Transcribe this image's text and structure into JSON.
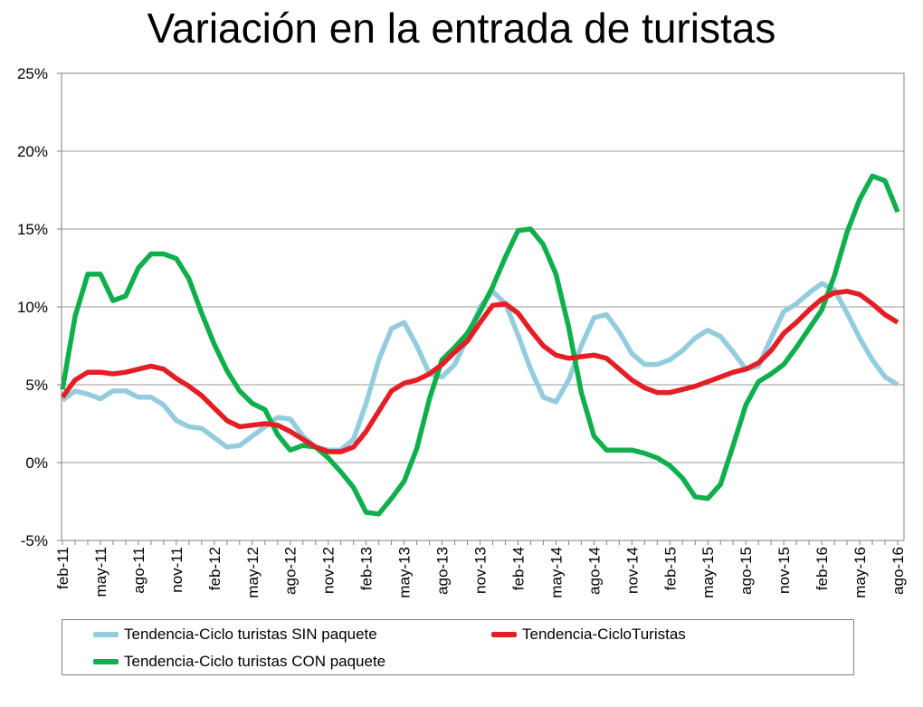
{
  "chart_data": {
    "type": "line",
    "title": "Variación en la entrada de turistas",
    "xlabel": "",
    "ylabel": "",
    "ylim": [
      -5,
      25
    ],
    "y_ticks": [
      -5,
      0,
      5,
      10,
      15,
      20,
      25
    ],
    "y_tick_labels": [
      "-5%",
      "0%",
      "5%",
      "10%",
      "15%",
      "20%",
      "25%"
    ],
    "grid": true,
    "legend_position": "bottom",
    "categories": [
      "feb-11",
      "mar-11",
      "abr-11",
      "may-11",
      "jun-11",
      "jul-11",
      "ago-11",
      "sep-11",
      "oct-11",
      "nov-11",
      "dic-11",
      "ene-12",
      "feb-12",
      "mar-12",
      "abr-12",
      "may-12",
      "jun-12",
      "jul-12",
      "ago-12",
      "sep-12",
      "oct-12",
      "nov-12",
      "dic-12",
      "ene-13",
      "feb-13",
      "mar-13",
      "abr-13",
      "may-13",
      "jun-13",
      "jul-13",
      "ago-13",
      "sep-13",
      "oct-13",
      "nov-13",
      "dic-13",
      "ene-14",
      "feb-14",
      "mar-14",
      "abr-14",
      "may-14",
      "jun-14",
      "jul-14",
      "ago-14",
      "sep-14",
      "oct-14",
      "nov-14",
      "dic-14",
      "ene-15",
      "feb-15",
      "mar-15",
      "abr-15",
      "may-15",
      "jun-15",
      "jul-15",
      "ago-15",
      "sep-15",
      "oct-15",
      "nov-15",
      "dic-15",
      "ene-16",
      "feb-16",
      "mar-16",
      "abr-16",
      "may-16",
      "jun-16",
      "jul-16",
      "ago-16"
    ],
    "tick_labels": [
      "feb-11",
      "may-11",
      "ago-11",
      "nov-11",
      "feb-12",
      "may-12",
      "ago-12",
      "nov-12",
      "feb-13",
      "may-13",
      "ago-13",
      "nov-13",
      "feb-14",
      "may-14",
      "ago-14",
      "nov-14",
      "feb-15",
      "may-15",
      "ago-15",
      "nov-15",
      "feb-16",
      "may-16",
      "ago-16"
    ],
    "series": [
      {
        "name": "Tendencia-Ciclo turistas SIN paquete",
        "color": "#93CDDD",
        "values": [
          4.0,
          4.6,
          4.4,
          4.1,
          4.6,
          4.6,
          4.2,
          4.2,
          3.7,
          2.7,
          2.3,
          2.2,
          1.6,
          1.0,
          1.1,
          1.7,
          2.3,
          2.9,
          2.8,
          1.7,
          1.0,
          0.8,
          0.8,
          1.5,
          3.8,
          6.6,
          8.6,
          9.0,
          7.5,
          5.7,
          5.5,
          6.3,
          8.0,
          10.0,
          11.0,
          10.2,
          8.2,
          6.0,
          4.2,
          3.9,
          5.3,
          7.5,
          9.3,
          9.5,
          8.4,
          7.0,
          6.3,
          6.3,
          6.6,
          7.2,
          8.0,
          8.5,
          8.1,
          7.1,
          6.0,
          6.2,
          8.0,
          9.7,
          10.2,
          10.9,
          11.5,
          11.1,
          9.6,
          8.0,
          6.6,
          5.5,
          5.0
        ]
      },
      {
        "name": "Tendencia-CicloTuristas",
        "color": "#E41E25",
        "values": [
          4.2,
          5.3,
          5.8,
          5.8,
          5.7,
          5.8,
          6.0,
          6.2,
          6.0,
          5.4,
          4.9,
          4.3,
          3.5,
          2.7,
          2.3,
          2.4,
          2.5,
          2.4,
          2.0,
          1.5,
          1.0,
          0.7,
          0.7,
          1.0,
          2.0,
          3.3,
          4.6,
          5.1,
          5.3,
          5.7,
          6.3,
          7.1,
          7.8,
          9.0,
          10.1,
          10.2,
          9.6,
          8.5,
          7.5,
          6.9,
          6.7,
          6.8,
          6.9,
          6.7,
          6.0,
          5.3,
          4.8,
          4.5,
          4.5,
          4.7,
          4.9,
          5.2,
          5.5,
          5.8,
          6.0,
          6.4,
          7.2,
          8.3,
          9.0,
          9.8,
          10.5,
          10.9,
          11.0,
          10.8,
          10.2,
          9.5,
          9.0
        ]
      },
      {
        "name": "Tendencia-Ciclo turistas CON paquete",
        "color": "#0FAF4C",
        "values": [
          4.7,
          9.4,
          12.1,
          12.1,
          10.4,
          10.7,
          12.5,
          13.4,
          13.4,
          13.1,
          11.8,
          9.6,
          7.6,
          5.9,
          4.6,
          3.8,
          3.4,
          1.8,
          0.8,
          1.1,
          1.0,
          0.3,
          -0.6,
          -1.6,
          -3.2,
          -3.3,
          -2.3,
          -1.2,
          0.9,
          4.1,
          6.6,
          7.4,
          8.3,
          9.7,
          11.3,
          13.2,
          14.9,
          15.0,
          14.0,
          12.1,
          8.7,
          4.5,
          1.7,
          0.8,
          0.8,
          0.8,
          0.6,
          0.3,
          -0.2,
          -1.0,
          -2.2,
          -2.3,
          -1.4,
          1.1,
          3.7,
          5.2,
          5.7,
          6.3,
          7.4,
          8.6,
          9.8,
          12.0,
          14.8,
          16.9,
          18.4,
          18.1,
          16.1
        ]
      }
    ]
  }
}
